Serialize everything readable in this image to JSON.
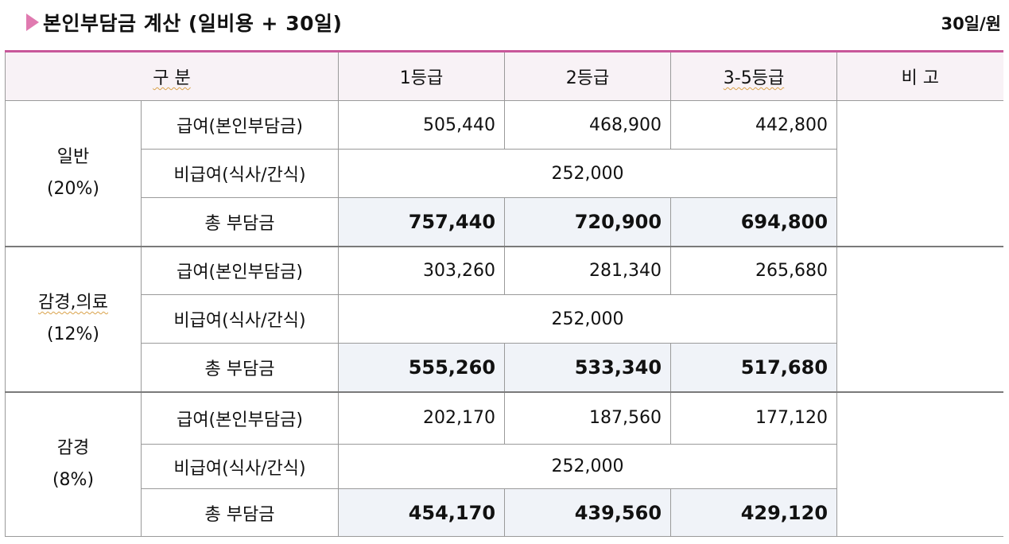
{
  "header": {
    "title": "본인부담금 계산 (일비용 + 30일)",
    "unit": "30일/원"
  },
  "table": {
    "col_headers": [
      "구 분",
      "1등급",
      "2등급",
      "3-5등급",
      "비 고"
    ],
    "groups": [
      {
        "name": "일반",
        "rate": "(20%)",
        "rows": [
          {
            "label": "급여(본인부담금)",
            "values": [
              "505,440",
              "468,900",
              "442,800"
            ]
          },
          {
            "label": "비급여(식사/간식)",
            "merged": "252,000"
          },
          {
            "label": "총 부담금",
            "values": [
              "757,440",
              "720,900",
              "694,800"
            ]
          }
        ]
      },
      {
        "name": "감경,의료",
        "rate": "(12%)",
        "rows": [
          {
            "label": "급여(본인부담금)",
            "values": [
              "303,260",
              "281,340",
              "265,680"
            ]
          },
          {
            "label": "비급여(식사/간식)",
            "merged": "252,000"
          },
          {
            "label": "총 부담금",
            "values": [
              "555,260",
              "533,340",
              "517,680"
            ]
          }
        ]
      },
      {
        "name": "감경",
        "rate": "(8%)",
        "rows": [
          {
            "label": "급여(본인부담금)",
            "values": [
              "202,170",
              "187,560",
              "177,120"
            ]
          },
          {
            "label": "비급여(식사/간식)",
            "merged": "252,000"
          },
          {
            "label": "총 부담금",
            "values": [
              "454,170",
              "439,560",
              "429,120"
            ]
          }
        ]
      }
    ]
  },
  "colors": {
    "accent": "#c8579a",
    "bullet": "#e07ab0",
    "header_bg": "#f8f2f6",
    "total_bg": "#f0f3f8"
  }
}
